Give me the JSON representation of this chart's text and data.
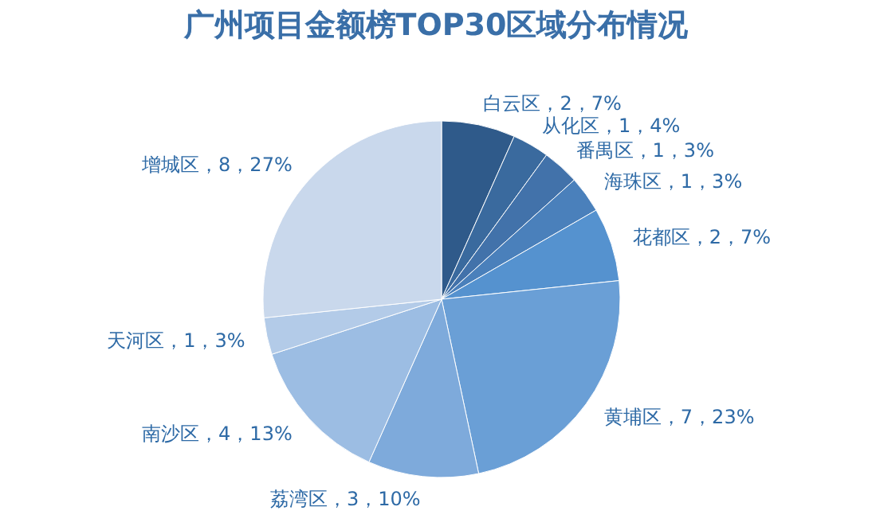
{
  "chart_data": {
    "type": "pie",
    "title": "广州项目金额榜TOP30区域分布情况",
    "categories": [
      "白云区",
      "从化区",
      "番禺区",
      "海珠区",
      "花都区",
      "黄埔区",
      "荔湾区",
      "南沙区",
      "天河区",
      "增城区"
    ],
    "values": [
      2,
      1,
      1,
      1,
      2,
      7,
      3,
      4,
      1,
      8
    ],
    "colors": [
      "#2f5a8a",
      "#3a6a9e",
      "#4272aa",
      "#4a80bb",
      "#5592cf",
      "#6a9fd6",
      "#7eaadb",
      "#9cbde3",
      "#b3cbe8",
      "#c9d8ec"
    ],
    "value_labels": [
      "，2，7%",
      "，1，4%",
      "，1，3%",
      "，1，3%",
      "，2，7%",
      "，7，23%",
      "，3，10%",
      "，4，13%",
      "，1，3%",
      "，8，27%"
    ],
    "legend": false
  }
}
